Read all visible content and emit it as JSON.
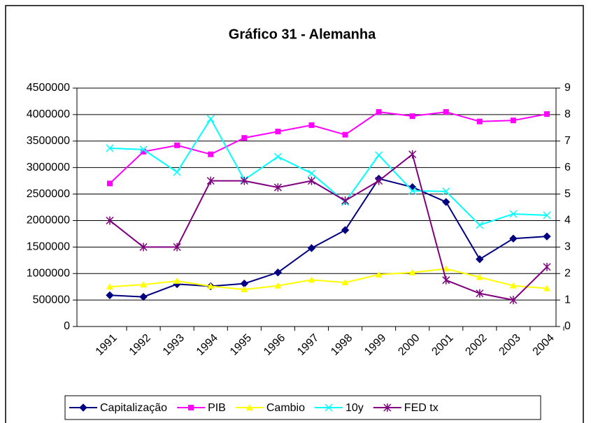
{
  "chart_data": {
    "type": "line",
    "title": "Gráfico 31 - Alemanha",
    "categories": [
      "1991",
      "1992",
      "1993",
      "1994",
      "1995",
      "1996",
      "1997",
      "1998",
      "1999",
      "2000",
      "2001",
      "2002",
      "2003",
      "2004"
    ],
    "series": [
      {
        "name": "Capitalização",
        "color": "#000080",
        "marker": "diamond",
        "values": [
          590000,
          560000,
          800000,
          760000,
          810000,
          1020000,
          1480000,
          1820000,
          2790000,
          2630000,
          2350000,
          1270000,
          1660000,
          1700000
        ]
      },
      {
        "name": "PIB",
        "color": "#ff00ff",
        "marker": "square",
        "values": [
          2700000,
          3300000,
          3420000,
          3250000,
          3560000,
          3680000,
          3800000,
          3620000,
          4050000,
          3970000,
          4050000,
          3870000,
          3890000,
          4010000
        ]
      },
      {
        "name": "Cambio",
        "color": "#ffff00",
        "marker": "triangle",
        "values": [
          750000,
          790000,
          860000,
          760000,
          700000,
          770000,
          880000,
          830000,
          980000,
          1020000,
          1090000,
          930000,
          770000,
          720000
        ]
      },
      {
        "name": "10y",
        "color": "#00ffff",
        "marker": "x",
        "axis": "y2",
        "values": [
          6.73,
          6.68,
          5.83,
          7.84,
          5.54,
          6.41,
          5.78,
          4.7,
          6.47,
          5.12,
          5.1,
          3.83,
          4.25,
          4.2
        ]
      },
      {
        "name": "FED tx",
        "color": "#800080",
        "marker": "star",
        "axis": "y2",
        "values": [
          4.0,
          3.0,
          3.0,
          5.5,
          5.5,
          5.25,
          5.5,
          4.75,
          5.5,
          6.5,
          1.75,
          1.25,
          1.0,
          2.25
        ]
      }
    ],
    "ylim": [
      0,
      4500000
    ],
    "yticks": [
      0,
      500000,
      1000000,
      1500000,
      2000000,
      2500000,
      3000000,
      3500000,
      4000000,
      4500000
    ],
    "y2lim": [
      0,
      9
    ],
    "y2ticks": [
      0,
      1,
      2,
      3,
      4,
      5,
      6,
      7,
      8,
      9
    ],
    "grid": true,
    "legend": "bottom"
  }
}
